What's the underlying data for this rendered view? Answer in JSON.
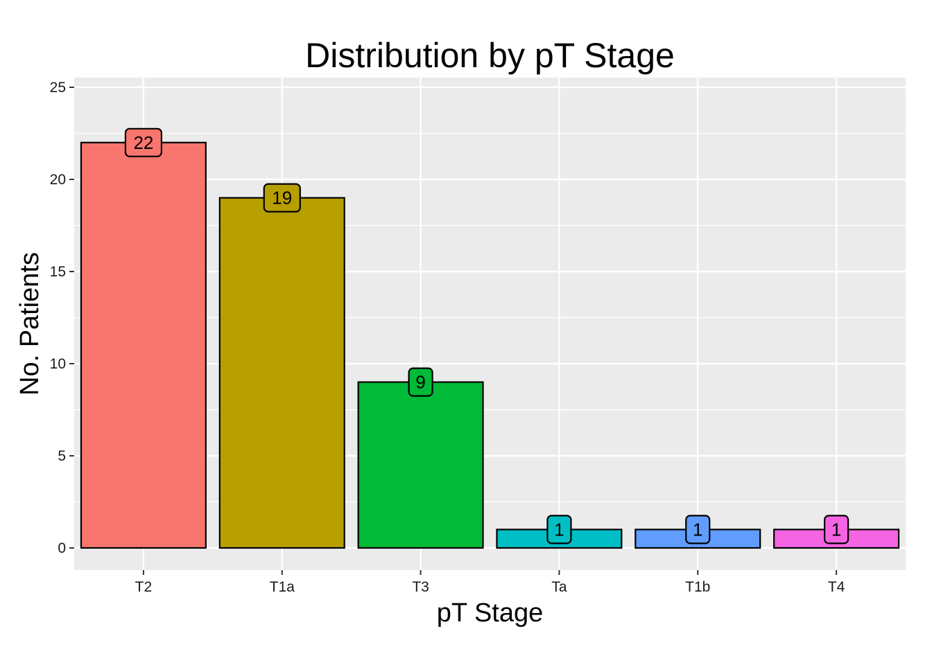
{
  "chart_data": {
    "type": "bar",
    "title": "Distribution by pT Stage",
    "xlabel": "pT Stage",
    "ylabel": "No. Patients",
    "categories": [
      "T2",
      "T1a",
      "T3",
      "Ta",
      "T1b",
      "T4"
    ],
    "values": [
      22,
      19,
      9,
      1,
      1,
      1
    ],
    "data_labels": [
      "22",
      "19",
      "9",
      "1",
      "1",
      "1"
    ],
    "colors": [
      "#F8766D",
      "#B79F00",
      "#00BA38",
      "#00BFC4",
      "#619CFF",
      "#F564E3"
    ],
    "ylim": [
      0,
      25
    ],
    "yticks": [
      0,
      5,
      10,
      15,
      20,
      25
    ],
    "ytick_labels": [
      "0",
      "5",
      "10",
      "15",
      "20",
      "25"
    ],
    "grid": true,
    "legend": "none",
    "panel_background": "#EBEBEB",
    "gridline_color": "#FFFFFF"
  }
}
